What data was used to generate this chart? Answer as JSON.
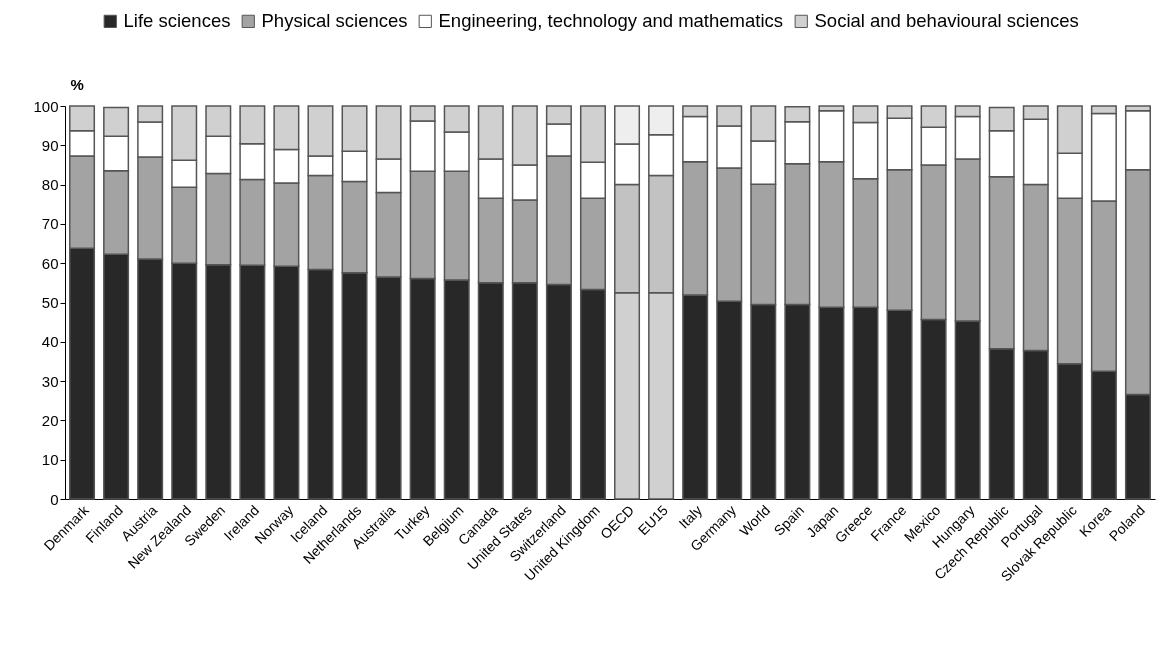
{
  "chart_data": {
    "type": "bar",
    "stacked": true,
    "ylabel": "%",
    "legend": "top right",
    "grid": false,
    "ylim": [
      0,
      100
    ],
    "yticks": [
      0,
      10,
      20,
      30,
      40,
      50,
      60,
      70,
      80,
      90,
      100
    ],
    "categories": [
      "Denmark",
      "Finland",
      "Austria",
      "New Zealand",
      "Sweden",
      "Ireland",
      "Norway",
      "Iceland",
      "Netherlands",
      "Australia",
      "Turkey",
      "Belgium",
      "Canada",
      "United States",
      "Switzerland",
      "United Kingdom",
      "OECD",
      "EU15",
      "Italy",
      "Germany",
      "World",
      "Spain",
      "Japan",
      "Greece",
      "France",
      "Mexico",
      "Hungary",
      "Czech Republic",
      "Portugal",
      "Slovak Republic",
      "Korea",
      "Poland"
    ],
    "series": [
      {
        "name": "Life sciences",
        "color": "#282828",
        "colors": [
          "#282828",
          "#282828",
          "#282828",
          "#282828",
          "#282828",
          "#282828",
          "#282828",
          "#282828",
          "#282828",
          "#282828",
          "#282828",
          "#282828",
          "#282828",
          "#282828",
          "#282828",
          "#282828",
          "#d0d0d0",
          "#d0d0d0",
          "#282828",
          "#282828",
          "#282828",
          "#282828",
          "#282828",
          "#282828",
          "#282828",
          "#282828",
          "#282828",
          "#282828",
          "#282828",
          "#282828",
          "#282828",
          "#282828"
        ],
        "values": [
          63.8,
          62.3,
          61.1,
          60,
          59.6,
          59.5,
          59.2,
          58.4,
          57.6,
          56.5,
          56.1,
          55.7,
          55,
          55,
          54.6,
          53.3,
          52.5,
          52.5,
          51.9,
          50.3,
          49.5,
          49.5,
          48.8,
          48.8,
          48,
          45.7,
          45.3,
          38.2,
          37.8,
          34.4,
          32.5,
          26.6
        ]
      },
      {
        "name": "Physical sciences",
        "color": "#a3a3a3",
        "colors": [
          "#a3a3a3",
          "#a3a3a3",
          "#a3a3a3",
          "#a3a3a3",
          "#a3a3a3",
          "#a3a3a3",
          "#a3a3a3",
          "#a3a3a3",
          "#a3a3a3",
          "#a3a3a3",
          "#a3a3a3",
          "#a3a3a3",
          "#a3a3a3",
          "#a3a3a3",
          "#a3a3a3",
          "#a3a3a3",
          "#c2c2c2",
          "#c2c2c2",
          "#a3a3a3",
          "#a3a3a3",
          "#a3a3a3",
          "#a3a3a3",
          "#a3a3a3",
          "#a3a3a3",
          "#a3a3a3",
          "#a3a3a3",
          "#a3a3a3",
          "#a3a3a3",
          "#a3a3a3",
          "#a3a3a3",
          "#a3a3a3",
          "#a3a3a3"
        ],
        "values": [
          23.5,
          21.2,
          25.9,
          19.3,
          23.2,
          21.8,
          21.2,
          23.9,
          23.2,
          21.5,
          27.3,
          27.7,
          21.5,
          21.1,
          32.7,
          23.2,
          27.5,
          29.8,
          33.9,
          33.9,
          30.6,
          35.8,
          37,
          32.7,
          35.8,
          39.3,
          41.2,
          43.8,
          42.2,
          42.1,
          43.3,
          57.2
        ]
      },
      {
        "name": "Engineering, technology and mathematics",
        "color": "#ffffff",
        "colors": [
          "#ffffff",
          "#ffffff",
          "#ffffff",
          "#ffffff",
          "#ffffff",
          "#ffffff",
          "#ffffff",
          "#ffffff",
          "#ffffff",
          "#ffffff",
          "#ffffff",
          "#ffffff",
          "#ffffff",
          "#ffffff",
          "#ffffff",
          "#ffffff",
          "#ffffff",
          "#ffffff",
          "#ffffff",
          "#ffffff",
          "#ffffff",
          "#ffffff",
          "#ffffff",
          "#ffffff",
          "#ffffff",
          "#ffffff",
          "#ffffff",
          "#ffffff",
          "#ffffff",
          "#ffffff",
          "#ffffff",
          "#ffffff"
        ],
        "values": [
          6.4,
          8.8,
          8.9,
          6.9,
          9.5,
          9.1,
          8.5,
          5,
          7.7,
          8.5,
          12.8,
          10,
          10,
          8.9,
          8.1,
          9.2,
          10.3,
          10.4,
          11.5,
          10.7,
          11,
          10.7,
          13,
          14.3,
          13.1,
          9.6,
          10.8,
          11.7,
          16.6,
          11.5,
          22.3,
          15
        ]
      },
      {
        "name": "Social and behavioural sciences",
        "color": "#d0d0d0",
        "colors": [
          "#d0d0d0",
          "#d0d0d0",
          "#d0d0d0",
          "#d0d0d0",
          "#d0d0d0",
          "#d0d0d0",
          "#d0d0d0",
          "#d0d0d0",
          "#d0d0d0",
          "#d0d0d0",
          "#d0d0d0",
          "#d0d0d0",
          "#d0d0d0",
          "#d0d0d0",
          "#d0d0d0",
          "#d0d0d0",
          "#eeeeee",
          "#eeeeee",
          "#d0d0d0",
          "#d0d0d0",
          "#d0d0d0",
          "#d0d0d0",
          "#d0d0d0",
          "#d0d0d0",
          "#d0d0d0",
          "#d0d0d0",
          "#d0d0d0",
          "#d0d0d0",
          "#d0d0d0",
          "#d0d0d0",
          "#d0d0d0",
          "#d0d0d0"
        ],
        "values": [
          6.3,
          7.3,
          4.1,
          13.8,
          7.7,
          9.6,
          11.1,
          12.7,
          11.5,
          13.5,
          3.8,
          6.6,
          13.5,
          15,
          4.6,
          14.3,
          9.7,
          7.3,
          2.7,
          5.1,
          8.9,
          3.8,
          1.2,
          4.2,
          3.1,
          5.4,
          2.7,
          5.9,
          3.4,
          12,
          1.9,
          1.2
        ]
      }
    ]
  }
}
